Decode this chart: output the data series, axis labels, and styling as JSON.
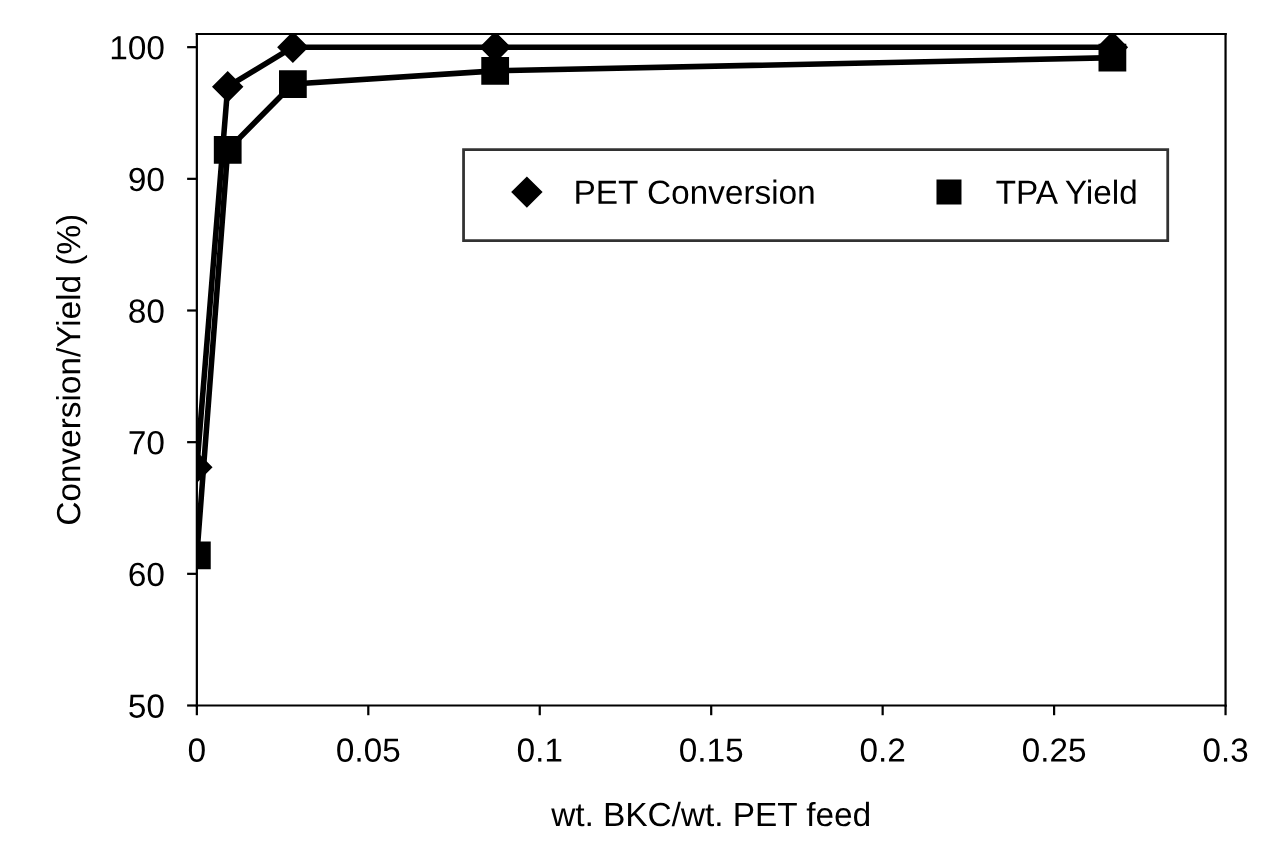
{
  "chart_data": {
    "type": "line",
    "xlabel": "wt. BKC/wt. PET feed",
    "ylabel": "Conversion/Yield (%)",
    "x": [
      0,
      0.009,
      0.028,
      0.087,
      0.267
    ],
    "series": [
      {
        "name": "PET Conversion",
        "color": "#000000",
        "marker": "diamond",
        "values": [
          68.1,
          97,
          100,
          100,
          100
        ]
      },
      {
        "name": "TPA Yield",
        "color": "#000000",
        "marker": "square",
        "values": [
          61.4,
          92.2,
          97.2,
          98.2,
          99.2
        ]
      }
    ],
    "xlim": [
      0,
      0.3
    ],
    "xticks": [
      0,
      0.05,
      0.1,
      0.15,
      0.2,
      0.25,
      0.3
    ],
    "ylim": [
      50,
      101
    ],
    "yticks": [
      50,
      60,
      70,
      80,
      90,
      100
    ],
    "grid": false,
    "legend": "right",
    "line_style": "solid"
  }
}
